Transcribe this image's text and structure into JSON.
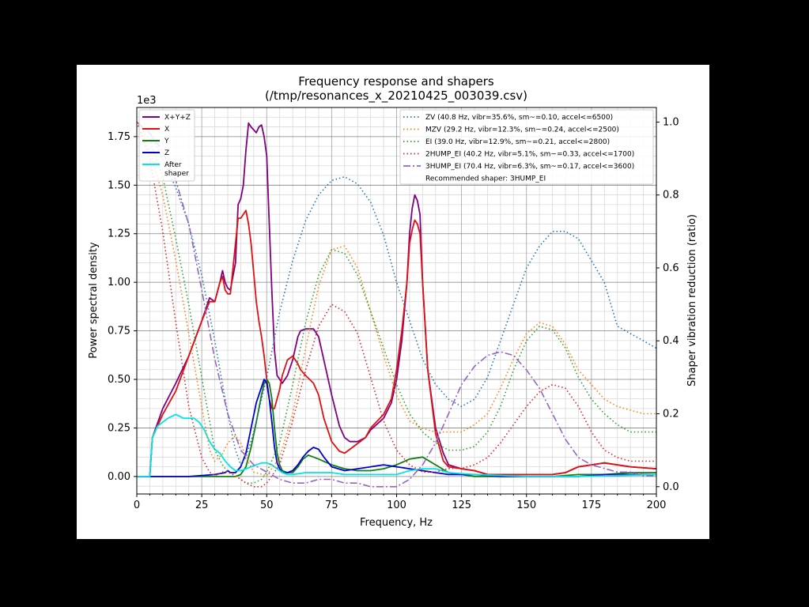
{
  "chart_data": {
    "type": "line",
    "title": "Frequency response and shapers",
    "subtitle": "(/tmp/resonances_x_20210425_003039.csv)",
    "xlabel": "Frequency, Hz",
    "ylabel": "Power spectral density",
    "y2label": "Shaper vibration reduction (ratio)",
    "y_scale_label": "1e3",
    "xlim": [
      0,
      200
    ],
    "ylim": [
      -0.09,
      1.9
    ],
    "y2lim": [
      -0.02,
      1.04
    ],
    "x_ticks": [
      0,
      25,
      50,
      75,
      100,
      125,
      150,
      175,
      200
    ],
    "x_tick_labels": [
      "0",
      "25",
      "50",
      "75",
      "100",
      "125",
      "150",
      "175",
      "200"
    ],
    "y_ticks": [
      0,
      0.25,
      0.5,
      0.75,
      1.0,
      1.25,
      1.5,
      1.75
    ],
    "y_tick_labels": [
      "0.00",
      "0.25",
      "0.50",
      "0.75",
      "1.00",
      "1.25",
      "1.50",
      "1.75"
    ],
    "y2_ticks": [
      0,
      0.2,
      0.4,
      0.6,
      0.8,
      1.0
    ],
    "y2_tick_labels": [
      "0.0",
      "0.2",
      "0.4",
      "0.6",
      "0.8",
      "1.0"
    ],
    "grid": true,
    "legend_left_placement": "top-left",
    "legend_right_placement": "top-right",
    "recommended_text": "Recommended shaper: 3HUMP_EI",
    "psd_series": [
      {
        "name": "X+Y+Z",
        "color": "#800080",
        "legend": "X+Y+Z",
        "x": [
          0,
          5,
          6,
          10,
          15,
          20,
          25,
          28,
          30,
          32,
          33,
          34,
          35,
          36,
          38,
          39,
          40,
          41,
          42,
          43,
          44,
          46,
          47,
          48,
          49,
          50,
          51,
          52,
          53,
          54,
          55,
          56,
          58,
          60,
          62,
          63,
          65,
          68,
          70,
          72,
          75,
          78,
          80,
          82,
          85,
          88,
          90,
          95,
          98,
          100,
          102,
          104,
          105,
          106,
          107,
          108,
          109,
          110,
          112,
          115,
          118,
          120,
          125,
          130,
          135,
          140,
          150,
          155,
          160,
          165,
          170,
          180,
          190,
          200
        ],
        "y": [
          0,
          0,
          0.2,
          0.35,
          0.48,
          0.62,
          0.8,
          0.92,
          0.9,
          1.0,
          1.06,
          1.0,
          0.97,
          0.96,
          1.1,
          1.4,
          1.43,
          1.5,
          1.68,
          1.82,
          1.8,
          1.77,
          1.8,
          1.81,
          1.75,
          1.65,
          1.3,
          0.95,
          0.65,
          0.52,
          0.5,
          0.48,
          0.52,
          0.6,
          0.72,
          0.75,
          0.76,
          0.76,
          0.72,
          0.6,
          0.42,
          0.26,
          0.2,
          0.18,
          0.18,
          0.2,
          0.24,
          0.3,
          0.38,
          0.5,
          0.7,
          1.0,
          1.25,
          1.38,
          1.45,
          1.42,
          1.35,
          1.0,
          0.55,
          0.25,
          0.12,
          0.06,
          0.04,
          0.03,
          0.01,
          0.01,
          0.01,
          0.01,
          0.01,
          0.02,
          0.05,
          0.07,
          0.05,
          0.04
        ]
      },
      {
        "name": "X",
        "color": "#e01010",
        "legend": "X",
        "x": [
          0,
          5,
          6,
          10,
          15,
          20,
          25,
          28,
          30,
          32,
          33,
          34,
          35,
          36,
          38,
          39,
          40,
          41,
          42,
          43,
          44,
          46,
          47,
          48,
          49,
          50,
          51,
          52,
          53,
          54,
          55,
          56,
          58,
          60,
          62,
          63,
          65,
          68,
          70,
          72,
          75,
          78,
          80,
          82,
          85,
          88,
          90,
          95,
          98,
          100,
          102,
          104,
          105,
          106,
          107,
          108,
          109,
          110,
          112,
          115,
          118,
          120,
          125,
          130,
          135,
          140,
          150,
          155,
          160,
          165,
          170,
          180,
          190,
          200
        ],
        "y": [
          0,
          0,
          0.2,
          0.32,
          0.44,
          0.62,
          0.8,
          0.9,
          0.9,
          1.0,
          1.03,
          0.96,
          0.94,
          0.94,
          1.2,
          1.33,
          1.33,
          1.35,
          1.37,
          1.3,
          1.2,
          0.9,
          0.8,
          0.72,
          0.62,
          0.5,
          0.4,
          0.35,
          0.35,
          0.4,
          0.45,
          0.52,
          0.6,
          0.62,
          0.58,
          0.55,
          0.52,
          0.48,
          0.42,
          0.3,
          0.18,
          0.13,
          0.12,
          0.14,
          0.17,
          0.2,
          0.25,
          0.32,
          0.4,
          0.55,
          0.75,
          1.0,
          1.2,
          1.27,
          1.32,
          1.3,
          1.25,
          1.0,
          0.55,
          0.22,
          0.08,
          0.05,
          0.04,
          0.03,
          0.01,
          0.01,
          0.01,
          0.01,
          0.01,
          0.02,
          0.05,
          0.07,
          0.05,
          0.04
        ]
      },
      {
        "name": "Y",
        "color": "#108010",
        "legend": "Y",
        "x": [
          0,
          5,
          10,
          20,
          30,
          38,
          40,
          42,
          44,
          46,
          48,
          49,
          50,
          51,
          52,
          53,
          54,
          55,
          56,
          58,
          60,
          62,
          64,
          66,
          68,
          70,
          75,
          80,
          85,
          90,
          95,
          100,
          105,
          110,
          115,
          120,
          125,
          130,
          140,
          150,
          160,
          170,
          180,
          190,
          200
        ],
        "y": [
          0,
          0,
          0,
          0,
          0,
          0,
          0.01,
          0.05,
          0.15,
          0.28,
          0.42,
          0.48,
          0.5,
          0.48,
          0.4,
          0.25,
          0.12,
          0.06,
          0.03,
          0.02,
          0.02,
          0.05,
          0.09,
          0.11,
          0.1,
          0.09,
          0.06,
          0.04,
          0.03,
          0.03,
          0.04,
          0.06,
          0.09,
          0.1,
          0.06,
          0.02,
          0.01,
          0,
          0,
          0,
          0,
          0.01,
          0.01,
          0.02,
          0.02
        ]
      },
      {
        "name": "Z",
        "color": "#0000d0",
        "legend": "Z",
        "x": [
          0,
          5,
          10,
          20,
          30,
          34,
          35,
          36,
          38,
          40,
          42,
          44,
          46,
          48,
          49,
          50,
          51,
          52,
          53,
          54,
          55,
          56,
          58,
          60,
          62,
          64,
          66,
          68,
          70,
          72,
          75,
          80,
          85,
          90,
          95,
          100,
          105,
          110,
          115,
          120,
          125,
          130,
          140,
          150,
          160,
          170,
          180,
          190,
          200
        ],
        "y": [
          0,
          0,
          0,
          0,
          0.01,
          0.02,
          0.03,
          0.02,
          0.02,
          0.05,
          0.12,
          0.25,
          0.38,
          0.46,
          0.5,
          0.48,
          0.4,
          0.28,
          0.15,
          0.07,
          0.04,
          0.02,
          0.02,
          0.03,
          0.06,
          0.1,
          0.13,
          0.15,
          0.14,
          0.1,
          0.05,
          0.03,
          0.04,
          0.05,
          0.06,
          0.05,
          0.04,
          0.03,
          0.02,
          0.01,
          0.01,
          0.01,
          0,
          0,
          0,
          0,
          0.01,
          0.01,
          0.01
        ]
      },
      {
        "name": "After shaper",
        "color": "#00e5e5",
        "legend": "After\nshaper",
        "x": [
          0,
          5,
          6,
          8,
          10,
          12,
          15,
          18,
          20,
          22,
          24,
          26,
          28,
          30,
          32,
          34,
          36,
          38,
          40,
          42,
          44,
          46,
          48,
          50,
          52,
          54,
          56,
          58,
          60,
          65,
          70,
          75,
          80,
          90,
          100,
          105,
          110,
          115,
          120,
          130,
          150,
          170,
          200
        ],
        "y": [
          0,
          0,
          0.2,
          0.26,
          0.28,
          0.3,
          0.32,
          0.3,
          0.3,
          0.3,
          0.28,
          0.24,
          0.18,
          0.14,
          0.12,
          0.08,
          0.05,
          0.03,
          0.03,
          0.04,
          0.05,
          0.06,
          0.07,
          0.07,
          0.06,
          0.04,
          0.02,
          0.01,
          0.01,
          0.02,
          0.02,
          0.02,
          0.01,
          0.01,
          0.01,
          0.03,
          0.04,
          0.04,
          0.02,
          0.01,
          0,
          0,
          0.01
        ]
      }
    ],
    "shaper_series": [
      {
        "name": "ZV",
        "color": "#1f77b4",
        "style": "dotted",
        "legend": "ZV (40.8 Hz, vibr=35.6%, sm~=0.10, accel<=6500)",
        "x": [
          0,
          5,
          10,
          15,
          20,
          25,
          30,
          35,
          38,
          40,
          42,
          45,
          50,
          55,
          60,
          65,
          70,
          75,
          80,
          85,
          90,
          95,
          100,
          110,
          115,
          120,
          125,
          130,
          135,
          140,
          145,
          150,
          155,
          160,
          165,
          170,
          175,
          180,
          185,
          190,
          195,
          200
        ],
        "y": [
          1.0,
          0.97,
          0.9,
          0.82,
          0.72,
          0.58,
          0.4,
          0.2,
          0.1,
          0.06,
          0.08,
          0.15,
          0.3,
          0.48,
          0.62,
          0.73,
          0.8,
          0.84,
          0.85,
          0.83,
          0.78,
          0.69,
          0.56,
          0.35,
          0.28,
          0.24,
          0.22,
          0.24,
          0.3,
          0.4,
          0.5,
          0.6,
          0.66,
          0.7,
          0.7,
          0.68,
          0.62,
          0.56,
          0.44,
          0.42,
          0.4,
          0.38
        ]
      },
      {
        "name": "MZV",
        "color": "#ff7f0e",
        "style": "dotted",
        "legend": "MZV (29.2 Hz, vibr=12.3%, sm~=0.24, accel<=2500)",
        "x": [
          0,
          5,
          10,
          15,
          20,
          25,
          28,
          30,
          33,
          35,
          38,
          40,
          42,
          45,
          50,
          55,
          60,
          65,
          70,
          75,
          80,
          85,
          90,
          95,
          100,
          105,
          110,
          115,
          120,
          125,
          130,
          135,
          140,
          145,
          150,
          155,
          160,
          165,
          170,
          175,
          180,
          185,
          190,
          195,
          200
        ],
        "y": [
          1.0,
          0.92,
          0.8,
          0.62,
          0.42,
          0.22,
          0.1,
          0.07,
          0.09,
          0.12,
          0.14,
          0.12,
          0.08,
          0.04,
          0.03,
          0.08,
          0.2,
          0.38,
          0.55,
          0.65,
          0.66,
          0.6,
          0.48,
          0.36,
          0.25,
          0.18,
          0.16,
          0.15,
          0.15,
          0.15,
          0.17,
          0.2,
          0.27,
          0.35,
          0.42,
          0.45,
          0.44,
          0.39,
          0.32,
          0.28,
          0.24,
          0.22,
          0.21,
          0.2,
          0.2
        ]
      },
      {
        "name": "EI",
        "color": "#2ca02c",
        "style": "dotted",
        "legend": "EI (39.0 Hz, vibr=12.9%, sm~=0.21, accel<=2800)",
        "x": [
          0,
          5,
          10,
          15,
          20,
          25,
          28,
          30,
          33,
          35,
          38,
          40,
          42,
          45,
          48,
          50,
          55,
          60,
          65,
          70,
          75,
          80,
          85,
          90,
          95,
          100,
          105,
          110,
          115,
          120,
          125,
          130,
          135,
          140,
          145,
          150,
          155,
          160,
          165,
          170,
          175,
          180,
          185,
          190,
          195,
          200
        ],
        "y": [
          1.0,
          0.95,
          0.85,
          0.68,
          0.5,
          0.3,
          0.18,
          0.1,
          0.06,
          0.04,
          0.03,
          0.02,
          0.01,
          0.01,
          0.02,
          0.04,
          0.12,
          0.28,
          0.45,
          0.58,
          0.65,
          0.64,
          0.58,
          0.48,
          0.38,
          0.28,
          0.2,
          0.15,
          0.12,
          0.1,
          0.1,
          0.11,
          0.15,
          0.22,
          0.32,
          0.4,
          0.44,
          0.43,
          0.38,
          0.3,
          0.24,
          0.2,
          0.17,
          0.15,
          0.15,
          0.15
        ]
      },
      {
        "name": "2HUMP_EI",
        "color": "#d62728",
        "style": "dotted",
        "legend": "2HUMP_EI (40.2 Hz, vibr=5.1%, sm~=0.33, accel<=1700)",
        "x": [
          0,
          5,
          10,
          15,
          20,
          25,
          28,
          30,
          33,
          35,
          38,
          40,
          42,
          45,
          48,
          50,
          55,
          60,
          65,
          70,
          75,
          80,
          85,
          90,
          95,
          100,
          105,
          110,
          115,
          120,
          125,
          130,
          135,
          140,
          145,
          150,
          155,
          160,
          165,
          170,
          175,
          180,
          185,
          190,
          195,
          200
        ],
        "y": [
          1.0,
          0.9,
          0.7,
          0.45,
          0.22,
          0.08,
          0.04,
          0.03,
          0.04,
          0.04,
          0.03,
          0.02,
          0.01,
          0.0,
          0.0,
          0.01,
          0.06,
          0.18,
          0.32,
          0.44,
          0.5,
          0.48,
          0.42,
          0.3,
          0.18,
          0.1,
          0.06,
          0.04,
          0.04,
          0.05,
          0.05,
          0.06,
          0.08,
          0.12,
          0.17,
          0.22,
          0.26,
          0.28,
          0.27,
          0.22,
          0.15,
          0.1,
          0.08,
          0.07,
          0.07,
          0.07
        ]
      },
      {
        "name": "3HUMP_EI",
        "color": "#9467bd",
        "style": "dashdot",
        "legend": "3HUMP_EI (70.4 Hz, vibr=6.3%, sm~=0.17, accel<=3600)",
        "x": [
          0,
          5,
          10,
          15,
          20,
          25,
          30,
          35,
          40,
          45,
          50,
          55,
          60,
          65,
          70,
          75,
          80,
          85,
          90,
          95,
          100,
          105,
          110,
          115,
          120,
          125,
          130,
          135,
          140,
          145,
          150,
          155,
          160,
          165,
          170,
          175,
          180,
          185,
          190,
          195,
          200
        ],
        "y": [
          1.0,
          0.97,
          0.92,
          0.84,
          0.72,
          0.54,
          0.35,
          0.2,
          0.1,
          0.06,
          0.04,
          0.02,
          0.01,
          0.01,
          0.02,
          0.02,
          0.01,
          0.01,
          0.0,
          0.0,
          0.0,
          0.02,
          0.06,
          0.12,
          0.2,
          0.28,
          0.33,
          0.36,
          0.37,
          0.36,
          0.32,
          0.27,
          0.2,
          0.13,
          0.08,
          0.06,
          0.05,
          0.04,
          0.04,
          0.03,
          0.03
        ]
      }
    ]
  }
}
